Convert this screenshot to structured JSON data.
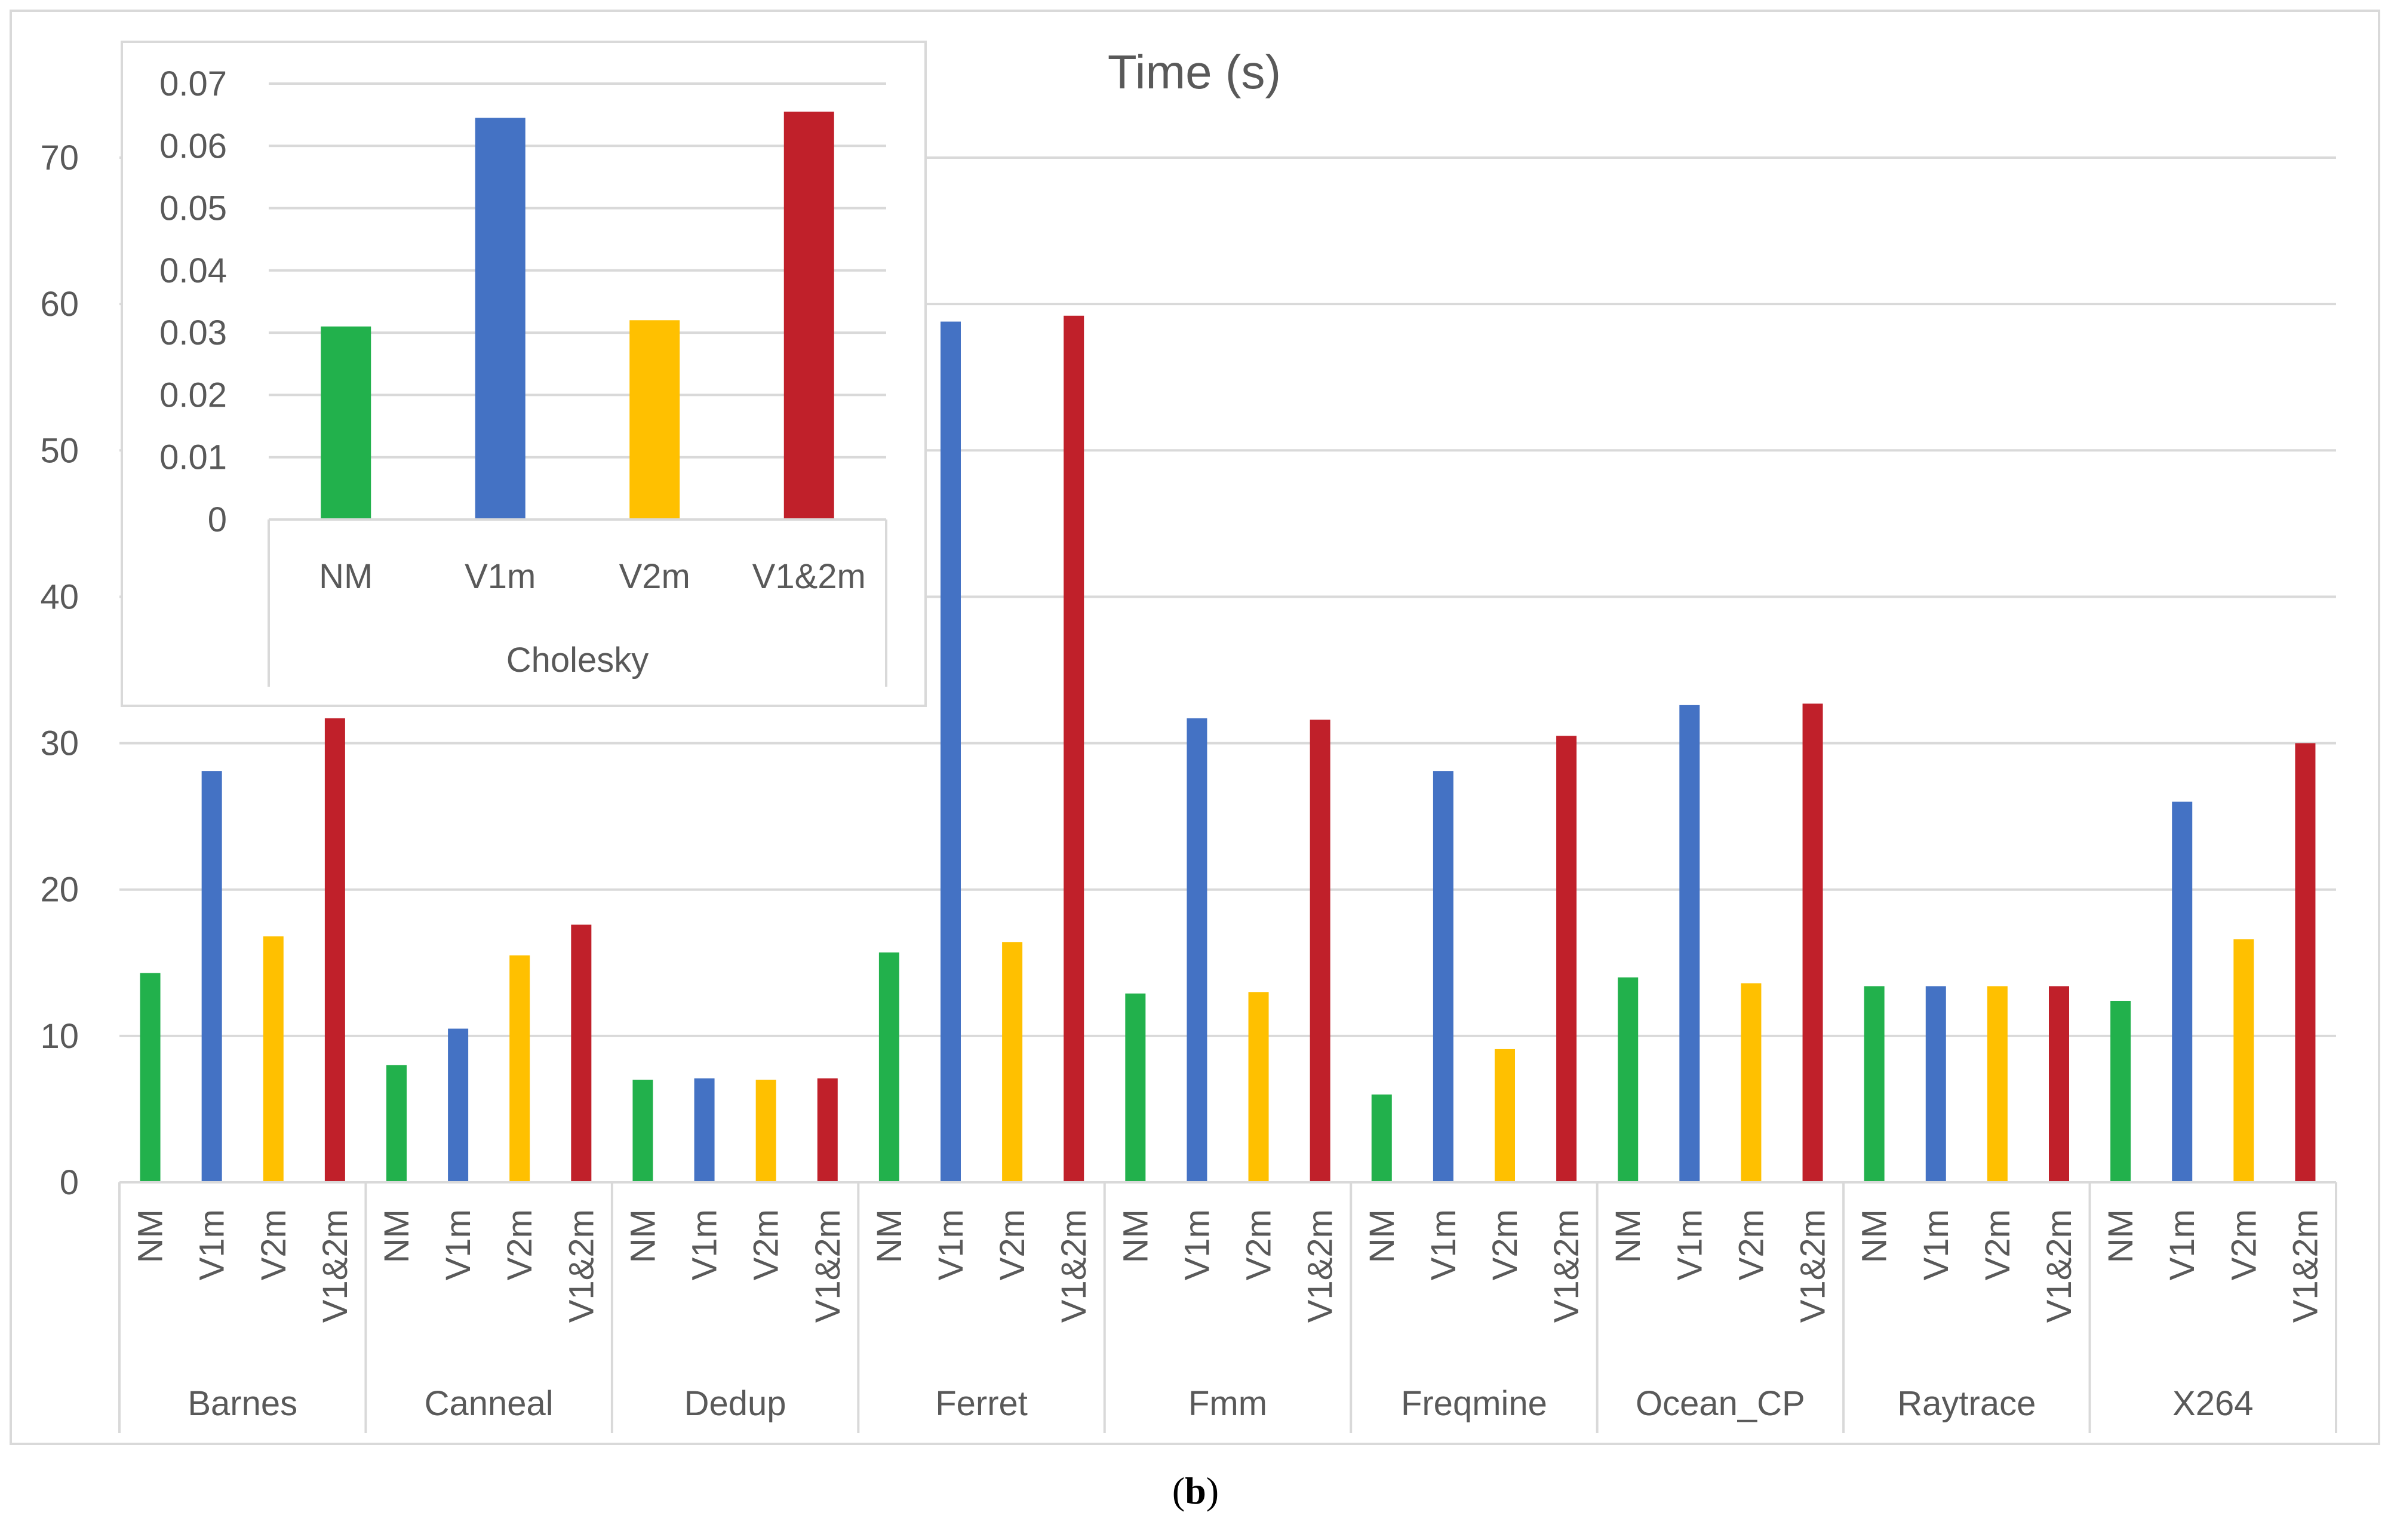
{
  "caption": {
    "open": "(",
    "letter": "b",
    "close": ")"
  },
  "colors": {
    "NM": "#22b14c",
    "V1m": "#4472c4",
    "V2m": "#ffc000",
    "V1&2m": "#c0202a",
    "grid": "#d9d9d9",
    "text": "#595959"
  },
  "chart_data": [
    {
      "type": "bar",
      "title": "Time (s)",
      "xlabel": "",
      "ylabel": "",
      "ylim": [
        0,
        70
      ],
      "yticks": [
        0,
        10,
        20,
        30,
        40,
        50,
        60,
        70
      ],
      "variants": [
        "NM",
        "V1m",
        "V2m",
        "V1&2m"
      ],
      "groups": [
        {
          "name": "Barnes",
          "values": [
            14.3,
            28.1,
            16.8,
            31.7
          ]
        },
        {
          "name": "Canneal",
          "values": [
            8.0,
            10.5,
            15.5,
            17.6
          ]
        },
        {
          "name": "Dedup",
          "values": [
            7.0,
            7.1,
            7.0,
            7.1
          ]
        },
        {
          "name": "Ferret",
          "values": [
            15.7,
            58.8,
            16.4,
            59.2
          ]
        },
        {
          "name": "Fmm",
          "values": [
            12.9,
            31.7,
            13.0,
            31.6
          ]
        },
        {
          "name": "Freqmine",
          "values": [
            6.0,
            28.1,
            9.1,
            30.5
          ]
        },
        {
          "name": "Ocean_CP",
          "values": [
            14.0,
            32.6,
            13.6,
            32.7
          ]
        },
        {
          "name": "Raytrace",
          "values": [
            13.4,
            13.4,
            13.4,
            13.4
          ]
        },
        {
          "name": "X264",
          "values": [
            12.4,
            26.0,
            16.6,
            30.0
          ]
        }
      ]
    },
    {
      "type": "bar",
      "title": "",
      "xlabel": "",
      "ylabel": "",
      "ylim": [
        0,
        0.07
      ],
      "yticks": [
        "0",
        "0.01",
        "0.02",
        "0.03",
        "0.04",
        "0.05",
        "0.06",
        "0.07"
      ],
      "variants": [
        "NM",
        "V1m",
        "V2m",
        "V1&2m"
      ],
      "groups": [
        {
          "name": "Cholesky",
          "values": [
            0.031,
            0.0645,
            0.032,
            0.0655
          ]
        }
      ]
    }
  ]
}
